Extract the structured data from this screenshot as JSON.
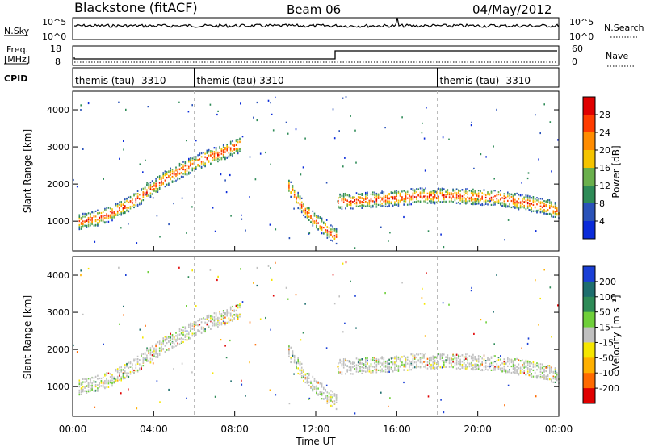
{
  "header": {
    "title": "Blackstone (fitACF)",
    "beam": "Beam 06",
    "date": "04/May/2012"
  },
  "panels": {
    "nsky": {
      "label": "N.Sky",
      "right_label": "N.Search",
      "tick_top": "10^5",
      "tick_bottom": "10^0"
    },
    "freq": {
      "label_line1": "Freq.",
      "label_line2": "[MHz]",
      "left_tick_top": "18",
      "left_tick_bottom": "8",
      "right_label": "Nave",
      "right_tick_top": "60",
      "right_tick_bottom": "0"
    },
    "cpid": {
      "label": "CPID",
      "segments": [
        {
          "text": "themis (tau) -3310",
          "start_hour": 0
        },
        {
          "text": "themis (tau) 3310",
          "start_hour": 6
        },
        {
          "text": "themis (tau) -3310",
          "start_hour": 18
        }
      ]
    }
  },
  "chart_data": [
    {
      "type": "heatmap",
      "name": "power",
      "ylabel": "Slant Range [km]",
      "yticks": [
        "1000",
        "2000",
        "3000",
        "4000"
      ],
      "ylim": [
        200,
        4500
      ],
      "xlim": [
        0,
        24
      ],
      "colorbar": {
        "label": "Power [dB]",
        "ticks": [
          "4",
          "8",
          "12",
          "16",
          "20",
          "24",
          "28"
        ],
        "colors": [
          "#0a2bd9",
          "#2a52b8",
          "#2e8b57",
          "#6ab04c",
          "#f5c400",
          "#ff8c00",
          "#ff3c00",
          "#e00000"
        ]
      },
      "bands": [
        {
          "x": [
            0.3,
            1.5,
            2.5,
            3.5,
            4.5,
            5.5,
            6.5,
            7.5,
            8.3
          ],
          "y": [
            1000,
            1150,
            1400,
            1750,
            2150,
            2450,
            2700,
            2900,
            3100
          ]
        },
        {
          "x": [
            10.6,
            11.2,
            11.8,
            12.5,
            13.0
          ],
          "y": [
            2000,
            1500,
            1100,
            800,
            600
          ]
        },
        {
          "x": [
            13.0,
            15.0,
            17.0,
            19.0,
            21.0,
            23.0,
            24.0
          ],
          "y": [
            1550,
            1600,
            1700,
            1700,
            1650,
            1450,
            1300
          ]
        }
      ]
    },
    {
      "type": "heatmap",
      "name": "velocity",
      "ylabel": "Slant Range [km]",
      "yticks": [
        "1000",
        "2000",
        "3000",
        "4000"
      ],
      "ylim": [
        200,
        4500
      ],
      "xlim": [
        0,
        24
      ],
      "colorbar": {
        "label": "Velocity [m s⁻¹]",
        "ticks": [
          "200",
          "100",
          "50",
          "15",
          "-15",
          "-50",
          "-100",
          "-200"
        ],
        "colors": [
          "#1a3fd6",
          "#1e6e6e",
          "#2e8b57",
          "#6fcf3a",
          "#c0c0c0",
          "#f5e600",
          "#ffb000",
          "#ff6a00",
          "#e00000"
        ]
      }
    }
  ],
  "time_axis": {
    "label": "Time UT",
    "ticks": [
      "00:00",
      "04:00",
      "08:00",
      "12:00",
      "16:00",
      "20:00",
      "00:00"
    ]
  }
}
